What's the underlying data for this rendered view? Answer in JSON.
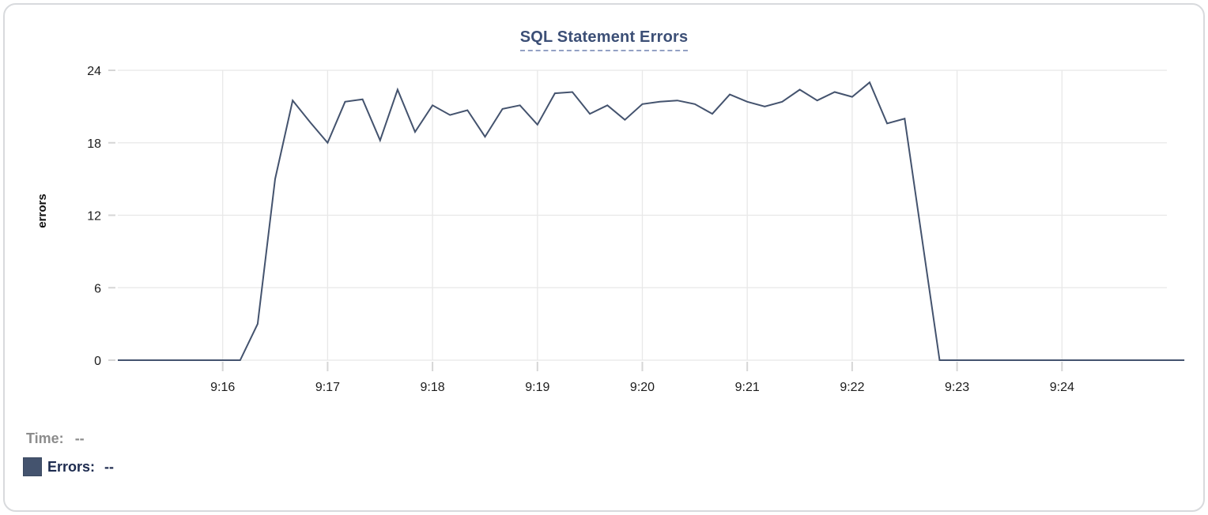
{
  "colors": {
    "line": "#44536e",
    "swatch": "#44536e",
    "title": "#3c4f76",
    "title_underline": "#93a1c4",
    "grid": "#e8e8e8",
    "tick": "#d6d6d6",
    "axis_text": "#1b1b1b",
    "time_label": "#8c8c8c",
    "errors_label": "#1d2b4f"
  },
  "readout": {
    "time_label": "Time:",
    "time_value": "--",
    "errors_label": "Errors:",
    "errors_value": "--"
  },
  "chart_data": {
    "type": "line",
    "title": "SQL Statement Errors",
    "xlabel": "",
    "ylabel": "errors",
    "ylim": [
      0,
      24
    ],
    "y_ticks": [
      0,
      6,
      12,
      18,
      24
    ],
    "grid": true,
    "legend_position": "bottom-left",
    "x_unit": "seconds from left edge of plot (left edge = 9:15, right edge = 9:25)",
    "x_start_sec": 0,
    "x_end_sec": 600,
    "x_step_sec": 10,
    "x_ticks": [
      {
        "label": "9:16",
        "sec": 60
      },
      {
        "label": "9:17",
        "sec": 120
      },
      {
        "label": "9:18",
        "sec": 180
      },
      {
        "label": "9:19",
        "sec": 240
      },
      {
        "label": "9:20",
        "sec": 300
      },
      {
        "label": "9:21",
        "sec": 360
      },
      {
        "label": "9:22",
        "sec": 420
      },
      {
        "label": "9:23",
        "sec": 480
      },
      {
        "label": "9:24",
        "sec": 540
      }
    ],
    "series": [
      {
        "name": "Errors",
        "color": "#44536e",
        "values": [
          0,
          0,
          0,
          0,
          0,
          0,
          0,
          0,
          3,
          15,
          21.5,
          19.7,
          18,
          21.4,
          21.6,
          18.2,
          22.4,
          18.9,
          21.1,
          20.3,
          20.7,
          18.5,
          20.8,
          21.1,
          19.5,
          22.1,
          22.2,
          20.4,
          21.1,
          19.9,
          21.2,
          21.4,
          21.5,
          21.2,
          20.4,
          22,
          21.4,
          21,
          21.4,
          22.4,
          21.5,
          22.2,
          21.8,
          23,
          19.6,
          20,
          10,
          0,
          0,
          0,
          0,
          0,
          0,
          0,
          0,
          0,
          0,
          0,
          0,
          0,
          0,
          0
        ]
      }
    ]
  }
}
